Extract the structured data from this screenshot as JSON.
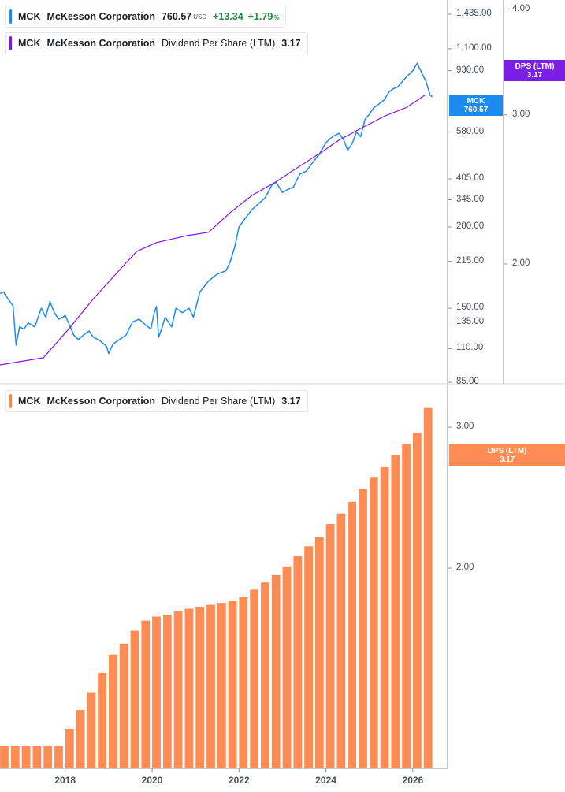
{
  "colors": {
    "price": "#1a8cf0",
    "dps_line": "#8a14e8",
    "dps_tag": "#7b1fe6",
    "dps_bar": "#ff8c55",
    "dps_bar_legend": "#f5884e",
    "axis": "#8a9097",
    "positive": "#1e8e3e"
  },
  "legend_price": {
    "ticker": "MCK",
    "name": "McKesson Corporation",
    "value": "760.57",
    "currency": "USD",
    "change": "+13.34",
    "change_pct": "+1.79",
    "pct_sign": "%"
  },
  "legend_dps_top": {
    "ticker": "MCK",
    "name": "McKesson Corporation",
    "metric": "Dividend Per Share (LTM)",
    "value": "3.17"
  },
  "legend_dps_bottom": {
    "ticker": "MCK",
    "name": "McKesson Corporation",
    "metric": "Dividend Per Share (LTM)",
    "value": "3.17"
  },
  "tags": {
    "price_label": "MCK",
    "price_value": "760.57",
    "dps_label": "DPS (LTM)",
    "dps_value": "3.17",
    "dps2_label": "DPS (LTM)",
    "dps2_value": "3.17"
  },
  "chart_data": [
    {
      "type": "line",
      "title": "",
      "y_scale": "log",
      "x_range": [
        2016.5,
        2026.8
      ],
      "price_axis": {
        "ticks": [
          "1,435.00",
          "1,100.00",
          "930.00",
          "580.00",
          "405.00",
          "345.00",
          "280.00",
          "215.00",
          "150.00",
          "135.00",
          "110.00",
          "85.00"
        ],
        "tick_values": [
          1435,
          1100,
          930,
          580,
          405,
          345,
          280,
          215,
          150,
          135,
          110,
          85
        ],
        "range": [
          85,
          1600
        ]
      },
      "dps_axis": {
        "ticks": [
          "4.00",
          "3.00",
          "2.00"
        ],
        "tick_values": [
          4.0,
          3.0,
          2.0
        ],
        "range": [
          1.45,
          4.1
        ]
      },
      "series": [
        {
          "axis": "price",
          "x": [
            2016.5,
            2016.58,
            2016.7,
            2016.8,
            2016.87,
            2016.95,
            2017.05,
            2017.15,
            2017.3,
            2017.45,
            2017.55,
            2017.65,
            2017.75,
            2017.85,
            2017.95,
            2018.0,
            2018.1,
            2018.2,
            2018.3,
            2018.45,
            2018.55,
            2018.65,
            2018.8,
            2018.95,
            2019.0,
            2019.1,
            2019.25,
            2019.4,
            2019.55,
            2019.7,
            2019.85,
            2019.97,
            2020.05,
            2020.1,
            2020.15,
            2020.22,
            2020.3,
            2020.45,
            2020.55,
            2020.7,
            2020.85,
            2020.95,
            2021.1,
            2021.3,
            2021.5,
            2021.7,
            2021.8,
            2021.9,
            2022.0,
            2022.15,
            2022.3,
            2022.5,
            2022.6,
            2022.75,
            2022.85,
            2023.0,
            2023.15,
            2023.25,
            2023.4,
            2023.55,
            2023.7,
            2023.85,
            2024.0,
            2024.15,
            2024.3,
            2024.4,
            2024.5,
            2024.6,
            2024.7,
            2024.8,
            2024.9,
            2025.0,
            2025.1,
            2025.25,
            2025.35,
            2025.45,
            2025.55,
            2025.65,
            2025.8,
            2025.9,
            2026.0,
            2026.1,
            2026.15,
            2026.22,
            2026.3,
            2026.4,
            2026.45
          ],
          "values": [
            168,
            170,
            160,
            153,
            113,
            130,
            128,
            134,
            130,
            150,
            140,
            158,
            145,
            138,
            140,
            142,
            132,
            122,
            118,
            123,
            126,
            120,
            117,
            112,
            106,
            114,
            118,
            122,
            135,
            138,
            132,
            128,
            145,
            152,
            120,
            128,
            140,
            130,
            150,
            145,
            150,
            140,
            170,
            185,
            195,
            200,
            215,
            240,
            280,
            300,
            320,
            340,
            350,
            385,
            395,
            365,
            375,
            380,
            420,
            430,
            460,
            490,
            535,
            560,
            575,
            550,
            505,
            530,
            580,
            560,
            640,
            665,
            700,
            725,
            745,
            790,
            810,
            820,
            870,
            900,
            930,
            985,
            950,
            905,
            860,
            770,
            760.57
          ]
        },
        {
          "axis": "dps",
          "x": [
            2016.5,
            2017.5,
            2018.1,
            2018.65,
            2019.3,
            2019.65,
            2020.1,
            2020.45,
            2020.8,
            2021.3,
            2021.8,
            2022.3,
            2022.85,
            2023.3,
            2023.85,
            2024.3,
            2024.85,
            2025.35,
            2025.85,
            2026.3
          ],
          "values": [
            1.52,
            1.55,
            1.68,
            1.82,
            1.98,
            2.07,
            2.12,
            2.14,
            2.16,
            2.18,
            2.3,
            2.41,
            2.5,
            2.59,
            2.7,
            2.8,
            2.9,
            2.99,
            3.06,
            3.17
          ]
        }
      ]
    },
    {
      "type": "bar",
      "title": "",
      "y_scale": "log",
      "x_range": [
        2016.5,
        2026.8
      ],
      "xticks": [
        "2018",
        "2020",
        "2022",
        "2024",
        "2026"
      ],
      "xtick_values": [
        2018,
        2020,
        2022,
        2024,
        2026
      ],
      "y_axis": {
        "ticks": [
          "3.00",
          "2.00"
        ],
        "tick_values": [
          3.0,
          2.0
        ],
        "range": [
          1.125,
          3.3
        ]
      },
      "x": [
        2016.6,
        2016.85,
        2017.1,
        2017.35,
        2017.6,
        2017.85,
        2018.1,
        2018.35,
        2018.6,
        2018.85,
        2019.1,
        2019.35,
        2019.6,
        2019.85,
        2020.1,
        2020.35,
        2020.6,
        2020.85,
        2021.1,
        2021.35,
        2021.6,
        2021.85,
        2022.1,
        2022.35,
        2022.6,
        2022.85,
        2023.1,
        2023.35,
        2023.6,
        2023.85,
        2024.1,
        2024.35,
        2024.6,
        2024.85,
        2025.1,
        2025.35,
        2025.6,
        2025.85,
        2026.1,
        2026.35
      ],
      "values": [
        1.2,
        1.2,
        1.2,
        1.2,
        1.2,
        1.2,
        1.26,
        1.33,
        1.4,
        1.48,
        1.56,
        1.61,
        1.67,
        1.72,
        1.74,
        1.75,
        1.77,
        1.78,
        1.79,
        1.8,
        1.81,
        1.82,
        1.84,
        1.88,
        1.92,
        1.96,
        2.01,
        2.07,
        2.13,
        2.19,
        2.27,
        2.34,
        2.42,
        2.51,
        2.6,
        2.68,
        2.77,
        2.86,
        2.95,
        3.17
      ]
    }
  ]
}
